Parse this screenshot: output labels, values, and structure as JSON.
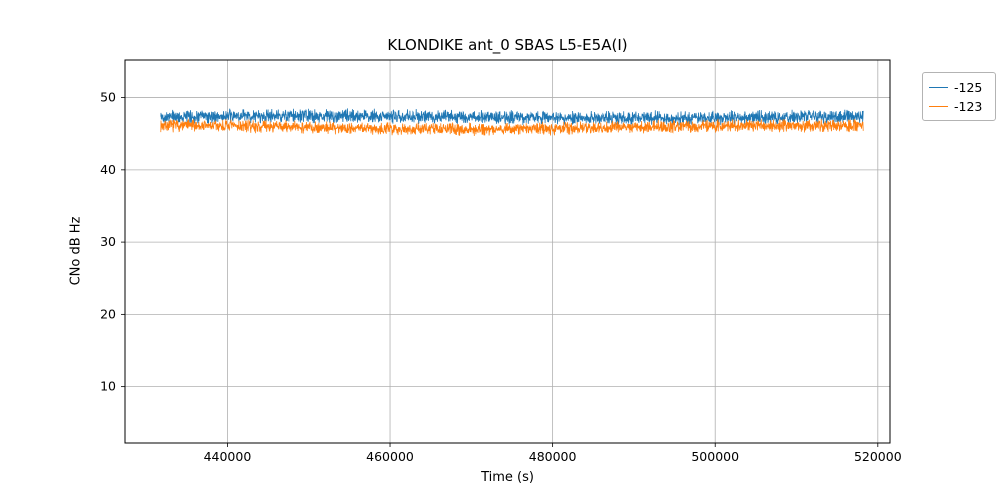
{
  "chart_data": {
    "type": "line",
    "title": "KLONDIKE ant_0 SBAS L5-E5A(I)",
    "xlabel": "Time (s)",
    "ylabel": "CNo dB Hz",
    "xlim": [
      427400,
      521500
    ],
    "ylim": [
      2.2,
      55.2
    ],
    "x_range": [
      431800,
      518200
    ],
    "x_ticks": [
      440000,
      460000,
      480000,
      500000,
      520000
    ],
    "y_ticks": [
      10,
      20,
      30,
      40,
      50
    ],
    "grid": true,
    "grid_color": "#b0b0b0",
    "legend_position": "outside-top-right",
    "series": [
      {
        "name": "-125",
        "color": "#1f77b4",
        "mean": 47.3,
        "noise_amp": 1.1,
        "drift": 0.15,
        "seed": 42,
        "description": "approximately constant CNo near 47.3 dB Hz with ~±1 dB noise"
      },
      {
        "name": "-123",
        "color": "#ff7f0e",
        "mean": 45.9,
        "noise_amp": 1.0,
        "drift": 0.25,
        "seed": 7,
        "description": "approximately constant CNo near 45.9 dB Hz with ~±1 dB noise"
      }
    ]
  }
}
